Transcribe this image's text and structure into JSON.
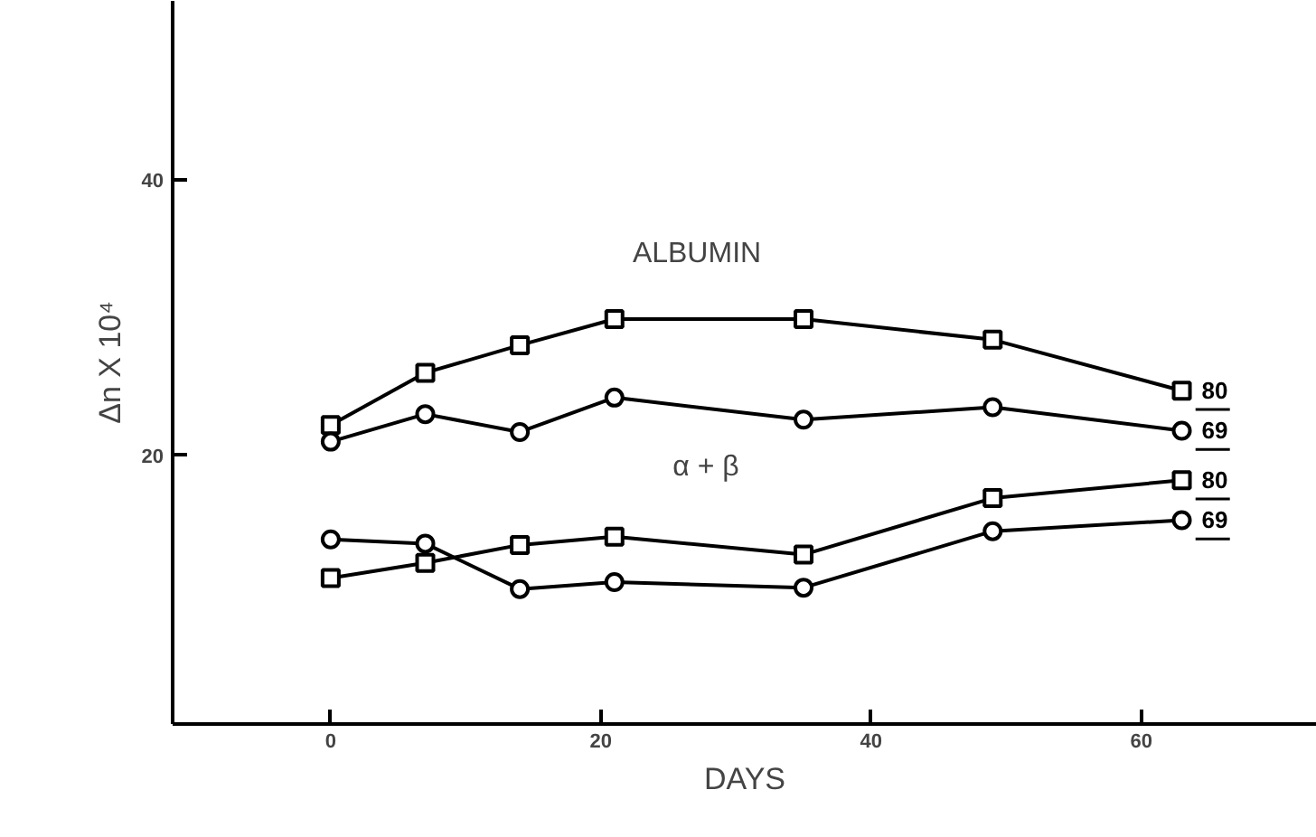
{
  "chart_data": {
    "type": "line",
    "xlabel": "DAYS",
    "ylabel": "Δn X 10⁴",
    "x": [
      0,
      7,
      14,
      21,
      35,
      49,
      63
    ],
    "xlim": [
      -11.7,
      73
    ],
    "ylim": [
      0.5,
      53
    ],
    "xticks": [
      0,
      20,
      40,
      60
    ],
    "yticks": [
      20,
      40
    ],
    "grid": false,
    "series": [
      {
        "color": "#000000",
        "marker": "square",
        "values": [
          22.2,
          26.0,
          28.0,
          29.9,
          29.9,
          28.4,
          24.7
        ]
      },
      {
        "color": "#000000",
        "marker": "circle",
        "values": [
          21.0,
          23.0,
          21.7,
          24.2,
          22.6,
          23.5,
          21.8
        ]
      },
      {
        "color": "#000000",
        "marker": "square",
        "values": [
          11.1,
          12.2,
          13.5,
          14.1,
          12.8,
          16.9,
          18.2
        ]
      },
      {
        "color": "#000000",
        "marker": "circle",
        "values": [
          13.9,
          13.6,
          10.3,
          10.8,
          10.4,
          14.5,
          15.3
        ]
      }
    ],
    "annotations": [
      "ALBUMIN",
      "α + β",
      "80",
      "69",
      "80",
      "69"
    ]
  }
}
